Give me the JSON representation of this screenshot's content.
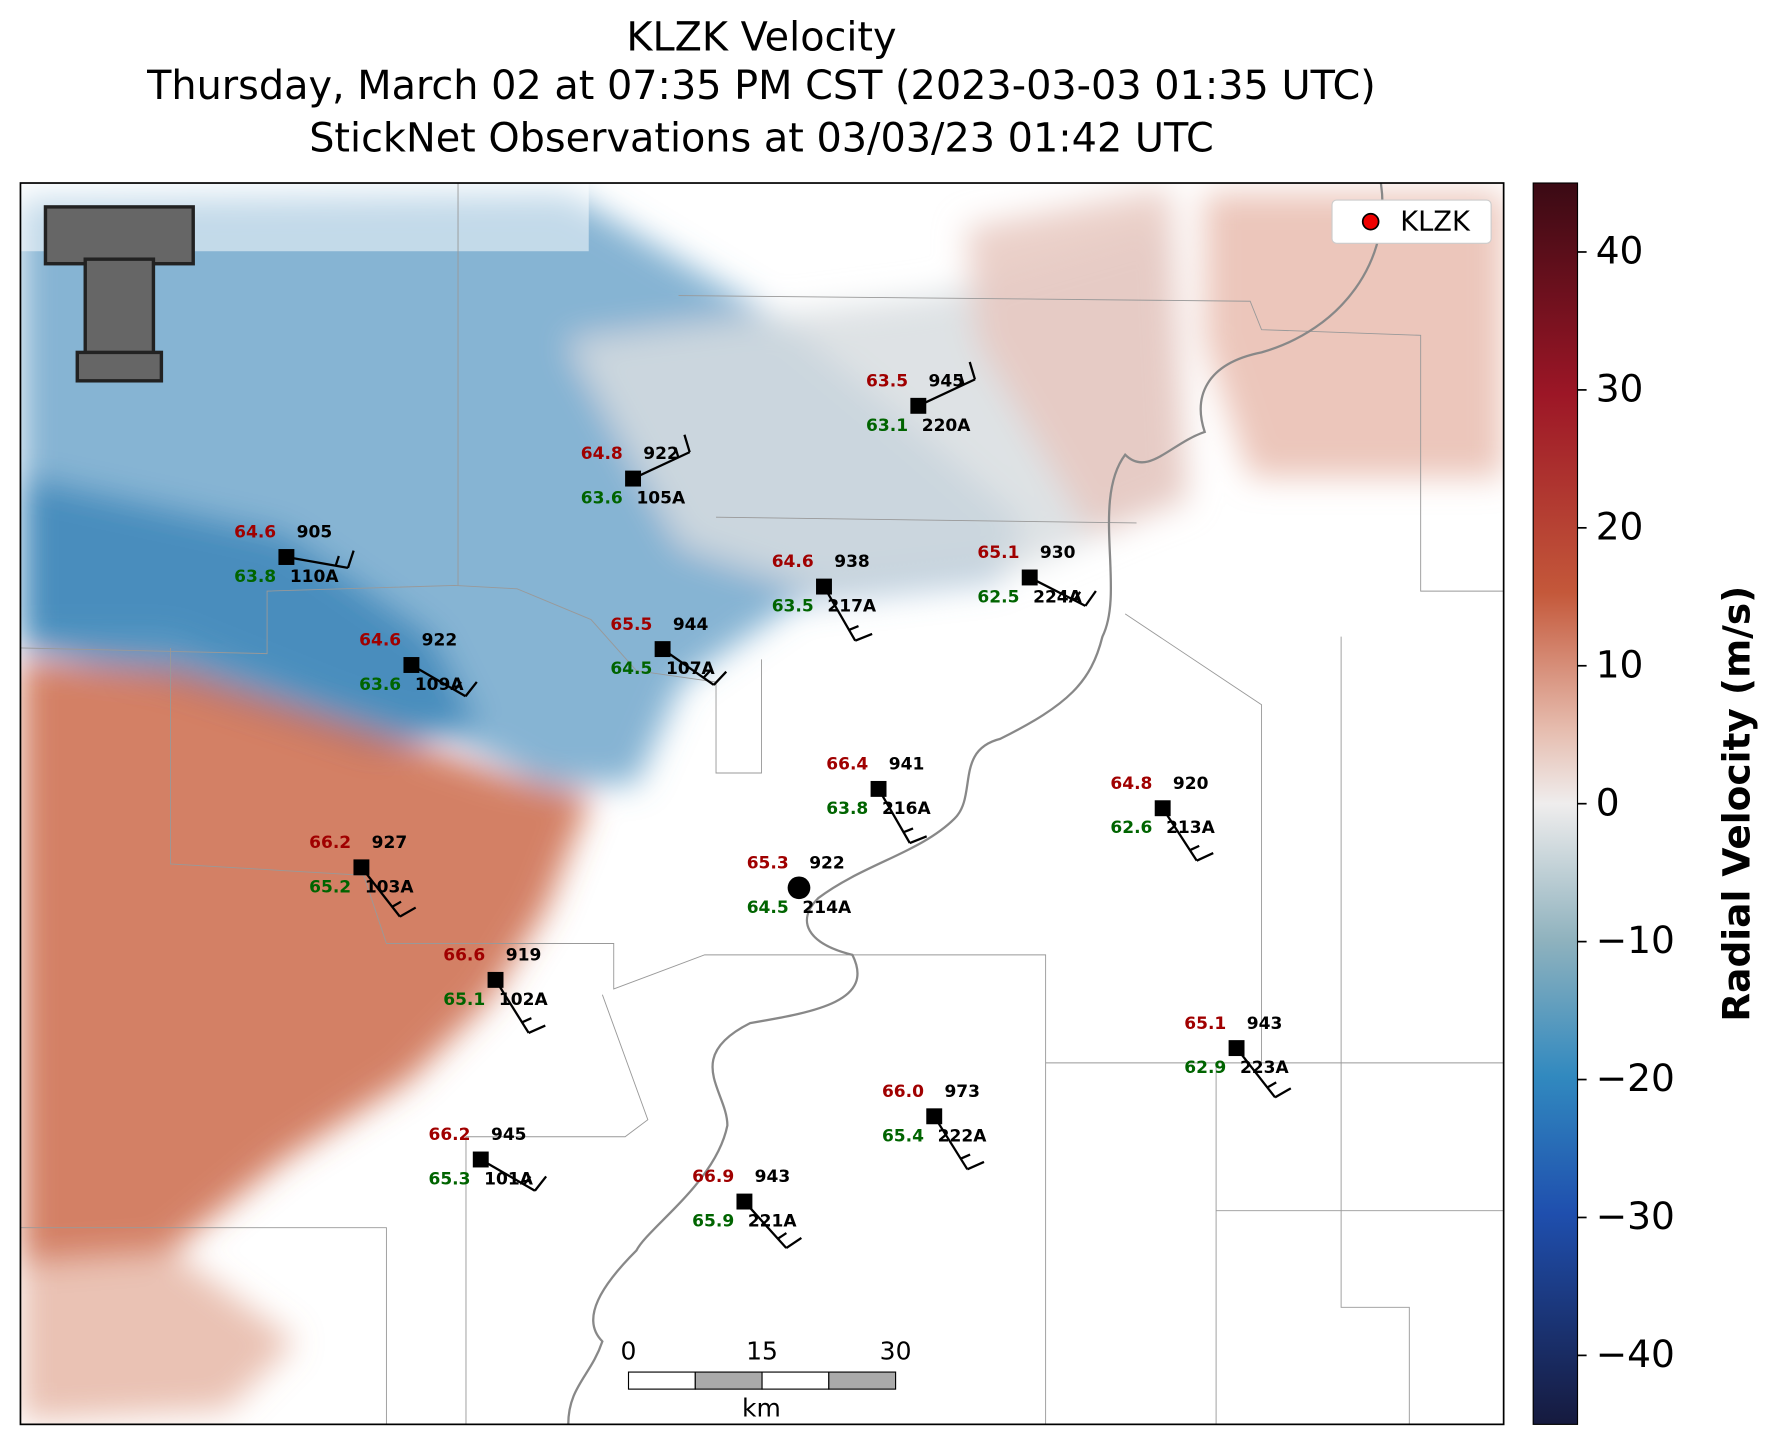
{
  "title": [
    "KLZK Velocity",
    "Thursday, March 02 at 07:35 PM CST (2023-03-03 01:35 UTC)",
    "StickNet Observations at 03/03/23 01:42 UTC"
  ],
  "legend": "KLZK",
  "colorbar": {
    "label": "Radial Velocity (m/s)",
    "lim": [
      -45,
      45
    ],
    "ticks": [
      {
        "value": -40,
        "label": "−40"
      },
      {
        "value": -30,
        "label": "−30"
      },
      {
        "value": -20,
        "label": "−20"
      },
      {
        "value": -10,
        "label": "−10"
      },
      0,
      10,
      20,
      30,
      40
    ]
  },
  "scalebar": {
    "ticks": [
      0,
      15,
      30
    ],
    "unit": "km"
  },
  "stations": [
    {
      "id": "220A",
      "temp": "63.5",
      "dew": "63.1",
      "pressure": "945"
    },
    {
      "id": "105A",
      "temp": "64.8",
      "dew": "63.6",
      "pressure": "922"
    },
    {
      "id": "110A",
      "temp": "64.6",
      "dew": "63.8",
      "pressure": "905"
    },
    {
      "id": "217A",
      "temp": "64.6",
      "dew": "63.5",
      "pressure": "938"
    },
    {
      "id": "224A",
      "temp": "65.1",
      "dew": "62.5",
      "pressure": "930"
    },
    {
      "id": "107A",
      "temp": "65.5",
      "dew": "64.5",
      "pressure": "944"
    },
    {
      "id": "109A",
      "temp": "64.6",
      "dew": "63.6",
      "pressure": "922"
    },
    {
      "id": "216A",
      "temp": "66.4",
      "dew": "63.8",
      "pressure": "941"
    },
    {
      "id": "213A",
      "temp": "64.8",
      "dew": "62.6",
      "pressure": "920"
    },
    {
      "id": "103A",
      "temp": "66.2",
      "dew": "65.2",
      "pressure": "927"
    },
    {
      "id": "214A",
      "temp": "65.3",
      "dew": "64.5",
      "pressure": "922"
    },
    {
      "id": "102A",
      "temp": "66.6",
      "dew": "65.1",
      "pressure": "919"
    },
    {
      "id": "223A",
      "temp": "65.1",
      "dew": "62.9",
      "pressure": "943"
    },
    {
      "id": "222A",
      "temp": "66.0",
      "dew": "65.4",
      "pressure": "973"
    },
    {
      "id": "101A",
      "temp": "66.2",
      "dew": "65.3",
      "pressure": "945"
    },
    {
      "id": "221A",
      "temp": "66.9",
      "dew": "65.9",
      "pressure": "943"
    }
  ]
}
